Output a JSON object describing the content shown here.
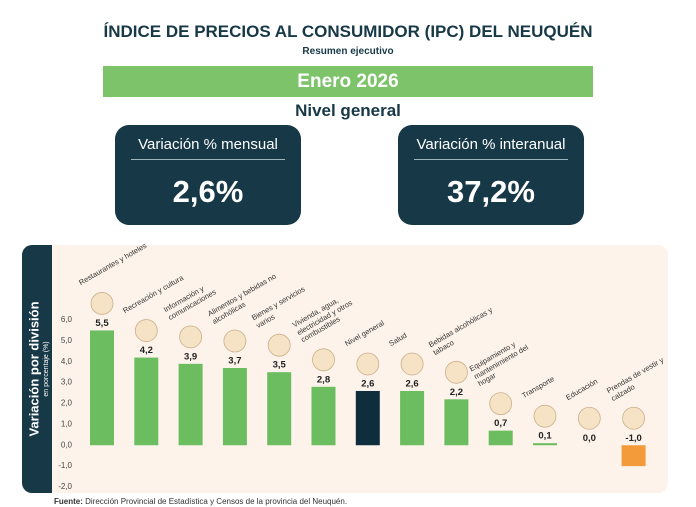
{
  "header": {
    "title": "ÍNDICE DE PRECIOS AL CONSUMIDOR (IPC) DEL NEUQUÉN",
    "subtitle": "Resumen ejecutivo",
    "period": "Enero 2026",
    "section": "Nivel general"
  },
  "kpis": [
    {
      "label": "Variación % mensual",
      "value": "2,6%"
    },
    {
      "label": "Variación % interanual",
      "value": "37,2%"
    }
  ],
  "chart_data": {
    "type": "bar",
    "title": "Variación por división",
    "subtitle": "en porcentaje (%)",
    "categories": [
      "Restaurantes y hoteles",
      "Recreación y cultura",
      "Información y comunicaciones",
      "Alimentos y bebidas no alcohólicas",
      "Bienes y servicios varios",
      "Vivienda, agua, electricidad y otros combustibles",
      "Nivel general",
      "Salud",
      "Bebidas alcohólicas y tabaco",
      "Equipamiento y mantenimiento del hogar",
      "Transporte",
      "Educación",
      "Prendas de vestir y calzado"
    ],
    "values": [
      5.5,
      4.2,
      3.9,
      3.7,
      3.5,
      2.8,
      2.6,
      2.6,
      2.2,
      0.7,
      0.1,
      0.0,
      -1.0
    ],
    "value_labels": [
      "5,5",
      "4,2",
      "3,9",
      "3,7",
      "3,5",
      "2,8",
      "2,6",
      "2,6",
      "2,2",
      "0,7",
      "0,1",
      "0,0",
      "-1,0"
    ],
    "colors": [
      "#6cbd5f",
      "#6cbd5f",
      "#6cbd5f",
      "#6cbd5f",
      "#6cbd5f",
      "#6cbd5f",
      "#0f2e3d",
      "#6cbd5f",
      "#6cbd5f",
      "#6cbd5f",
      "#6cbd5f",
      "#6cbd5f",
      "#f39b3a"
    ],
    "ylim": [
      -2,
      6
    ],
    "yticks": [
      {
        "value": -2,
        "label": "-2,0"
      },
      {
        "value": -1,
        "label": "-1,0"
      },
      {
        "value": 0,
        "label": "0,0"
      },
      {
        "value": 1,
        "label": "1,0"
      },
      {
        "value": 2,
        "label": "2,0"
      },
      {
        "value": 3,
        "label": "3,0"
      },
      {
        "value": 4,
        "label": "4,0"
      },
      {
        "value": 5,
        "label": "5,0"
      },
      {
        "value": 6,
        "label": "6,0"
      }
    ],
    "grid": false
  },
  "source": {
    "label": "Fuente:",
    "text": "Dirección Provincial de Estadística y Censos de la provincia del Neuquén."
  }
}
